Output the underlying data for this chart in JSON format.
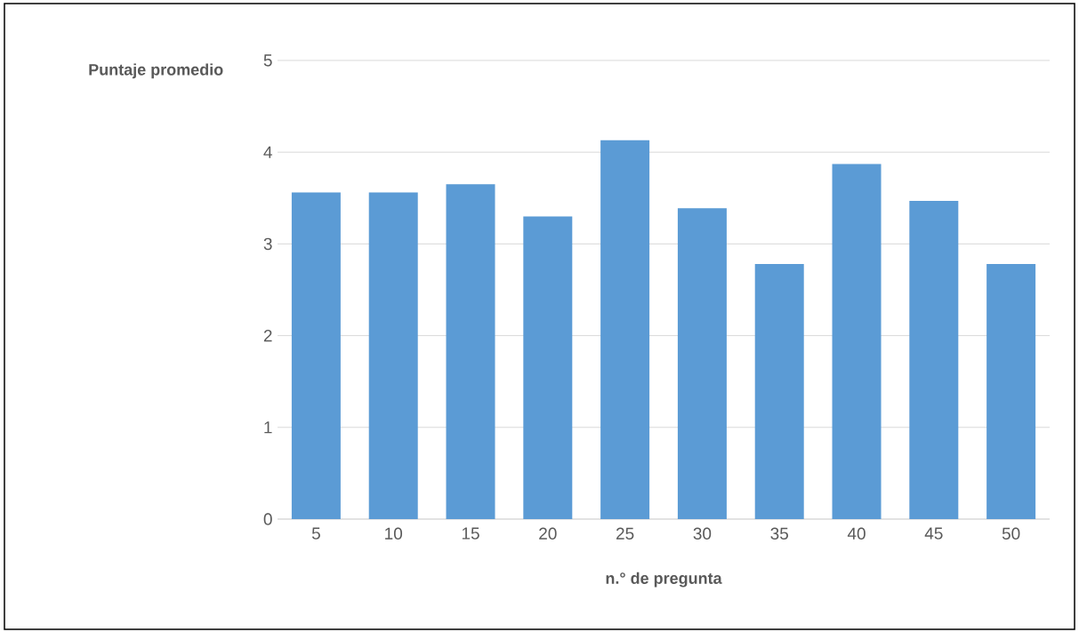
{
  "chart_data": {
    "type": "bar",
    "xlabel": "n.° de pregunta",
    "ylabel": "Puntaje promedio",
    "categories": [
      "5",
      "10",
      "15",
      "20",
      "25",
      "30",
      "35",
      "40",
      "45",
      "50"
    ],
    "values": [
      3.56,
      3.56,
      3.65,
      3.3,
      4.13,
      3.39,
      2.78,
      3.87,
      3.47,
      2.78
    ],
    "color": "#5b9bd5",
    "ylim": [
      0,
      5
    ],
    "yticks": [
      0,
      1,
      2,
      3,
      4,
      5
    ],
    "grid": "y"
  }
}
